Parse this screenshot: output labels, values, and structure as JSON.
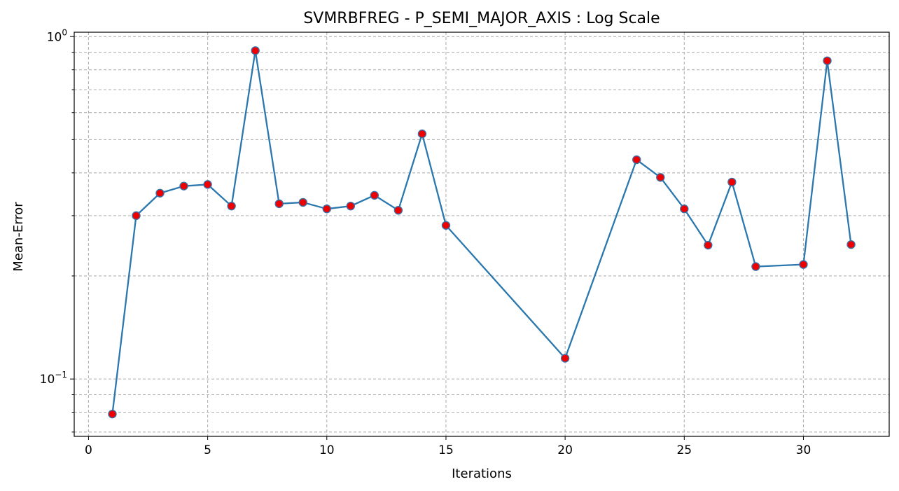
{
  "chart_data": {
    "type": "line",
    "title": "SVMRBFREG - P_SEMI_MAJOR_AXIS : Log Scale",
    "xlabel": "Iterations",
    "ylabel": "Mean-Error",
    "yscale": "log",
    "grid": true,
    "xlim": [
      -0.6,
      33.6
    ],
    "ylim": [
      0.068,
      1.03
    ],
    "x_ticks": [
      0,
      5,
      10,
      15,
      20,
      25,
      30
    ],
    "y_major_ticks": [
      {
        "value": 0.1,
        "base": "10",
        "exp": "−1"
      },
      {
        "value": 1.0,
        "base": "10",
        "exp": "0"
      }
    ],
    "y_minor_ticks": [
      0.07,
      0.08,
      0.09,
      0.2,
      0.3,
      0.4,
      0.5,
      0.6,
      0.7,
      0.8,
      0.9
    ],
    "series": [
      {
        "x": [
          1,
          2,
          3,
          4,
          5,
          6,
          7,
          8,
          9,
          10,
          11,
          12,
          13,
          14,
          15,
          20,
          23,
          24,
          25,
          26,
          27,
          28,
          30,
          31,
          32
        ],
        "y": [
          0.079,
          0.3,
          0.349,
          0.366,
          0.37,
          0.32,
          0.91,
          0.325,
          0.328,
          0.314,
          0.32,
          0.344,
          0.311,
          0.52,
          0.281,
          0.115,
          0.437,
          0.388,
          0.314,
          0.246,
          0.376,
          0.213,
          0.216,
          0.85,
          0.247
        ],
        "line_color": "#2a78ad",
        "marker_face": "#ee0000",
        "marker_edge": "#3a70a8"
      }
    ]
  }
}
